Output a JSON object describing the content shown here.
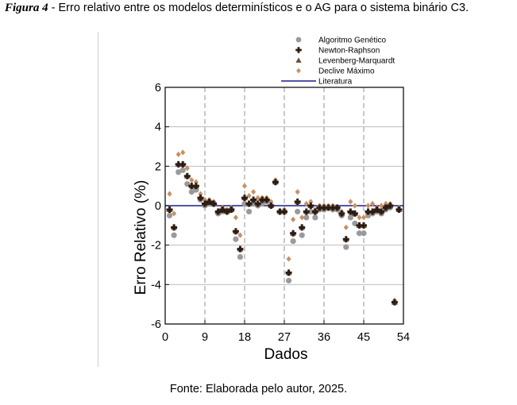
{
  "caption": {
    "label": "Figura 4",
    "text": " - Erro relativo entre os modelos determinísticos e o AG para o sistema binário C3."
  },
  "source": "Fonte: Elaborada pelo autor, 2025.",
  "colors": {
    "ag": "#9a9a9a",
    "newton": "#2b1d14",
    "levenberg": "#6b4a33",
    "declive": "#c89064",
    "literatura": "#1c1c8c",
    "grid_major": "#bdbdbd",
    "grid_minor": "#9a9a9a"
  },
  "chart_data": {
    "type": "scatter",
    "xlabel": "Dados",
    "ylabel": "Erro Relativo (%)",
    "xlim": [
      0,
      54
    ],
    "ylim": [
      -6,
      6
    ],
    "xticks": [
      0,
      9,
      18,
      27,
      36,
      45,
      54
    ],
    "yticks": [
      -6,
      -4,
      -2,
      0,
      2,
      4,
      6
    ],
    "grid": "horizontal solid at y ticks; vertical dashed at x = 9, 18, 27, 36, 45",
    "legend_position": "top",
    "legend": [
      {
        "name": "Algoritmo Genético",
        "marker": "circle"
      },
      {
        "name": "Newton-Raphson",
        "marker": "plus"
      },
      {
        "name": "Levenberg-Marquardt",
        "marker": "triangle"
      },
      {
        "name": "Declive Máximo",
        "marker": "diamond"
      },
      {
        "name": "Literatura",
        "marker": "line"
      }
    ],
    "x": [
      1,
      2,
      3,
      4,
      5,
      6,
      7,
      8,
      9,
      10,
      11,
      12,
      13,
      14,
      15,
      16,
      17,
      18,
      19,
      20,
      21,
      22,
      23,
      24,
      25,
      26,
      27,
      28,
      29,
      30,
      31,
      32,
      33,
      34,
      35,
      36,
      37,
      38,
      39,
      40,
      41,
      42,
      43,
      44,
      45,
      46,
      47,
      48,
      49,
      50,
      51,
      52,
      53
    ],
    "series": [
      {
        "name": "Algoritmo Genético",
        "marker": "circle",
        "values": [
          -0.5,
          -1.5,
          1.7,
          1.8,
          1.1,
          0.7,
          0.8,
          0.3,
          0.0,
          0.1,
          0.1,
          -0.4,
          -0.3,
          -0.3,
          -0.2,
          -1.7,
          -2.6,
          0.1,
          -0.3,
          0.1,
          0.0,
          0.1,
          0.2,
          0.0,
          1.2,
          -0.3,
          -0.3,
          -3.8,
          -1.8,
          -0.3,
          -1.5,
          -0.6,
          -0.3,
          -0.6,
          -0.2,
          -0.2,
          -0.1,
          -0.2,
          -0.2,
          -0.5,
          -2.1,
          -0.6,
          -0.9,
          -1.4,
          -1.4,
          -0.5,
          -0.4,
          -0.3,
          -0.4,
          -0.2,
          -0.1,
          -4.9,
          -0.2
        ]
      },
      {
        "name": "Newton-Raphson",
        "marker": "plus",
        "values": [
          -0.2,
          -1.1,
          2.1,
          2.1,
          1.5,
          1.0,
          1.0,
          0.4,
          0.1,
          0.2,
          0.1,
          -0.3,
          -0.2,
          -0.3,
          -0.2,
          -1.3,
          -2.2,
          0.4,
          0.1,
          0.3,
          0.1,
          0.3,
          0.3,
          0.0,
          1.2,
          -0.3,
          -0.3,
          -3.4,
          -1.4,
          0.2,
          -1.1,
          -0.3,
          0.0,
          -0.3,
          -0.1,
          -0.1,
          -0.1,
          -0.1,
          -0.1,
          -0.4,
          -1.7,
          -0.3,
          -0.4,
          -1.0,
          -1.0,
          -0.3,
          -0.3,
          -0.2,
          -0.3,
          -0.1,
          0.0,
          -4.9,
          -0.2
        ]
      },
      {
        "name": "Levenberg-Marquardt",
        "marker": "triangle",
        "values": [
          -0.2,
          -1.1,
          2.1,
          2.1,
          1.5,
          1.0,
          1.0,
          0.4,
          0.1,
          0.2,
          0.1,
          -0.3,
          -0.2,
          -0.3,
          -0.2,
          -1.3,
          -2.2,
          0.4,
          0.1,
          0.3,
          0.1,
          0.3,
          0.3,
          0.0,
          1.2,
          -0.3,
          -0.3,
          -3.4,
          -1.4,
          0.2,
          -1.1,
          -0.3,
          0.0,
          -0.3,
          -0.1,
          -0.1,
          -0.1,
          -0.1,
          -0.1,
          -0.4,
          -1.7,
          -0.3,
          -0.4,
          -1.0,
          -1.0,
          -0.3,
          -0.3,
          -0.2,
          -0.3,
          -0.1,
          0.0,
          -4.9,
          -0.2
        ]
      },
      {
        "name": "Declive Máximo",
        "marker": "diamond",
        "values": [
          0.6,
          -0.4,
          2.6,
          2.7,
          1.9,
          1.3,
          1.2,
          0.6,
          0.3,
          0.3,
          0.2,
          -0.3,
          -0.1,
          -0.2,
          -0.1,
          -0.6,
          -1.5,
          1.0,
          0.5,
          0.7,
          0.4,
          0.4,
          0.4,
          0.2,
          1.3,
          -0.3,
          -0.2,
          -2.7,
          -0.7,
          0.7,
          -0.6,
          0.1,
          0.2,
          -0.2,
          0.0,
          0.0,
          0.0,
          0.0,
          -0.1,
          -0.3,
          -1.1,
          0.2,
          0.0,
          -0.6,
          -0.6,
          0.0,
          0.1,
          -0.1,
          0.0,
          0.1,
          0.1,
          -4.8,
          -0.1
        ]
      },
      {
        "name": "Literatura",
        "marker": "line",
        "values": [
          0,
          0
        ]
      }
    ]
  }
}
